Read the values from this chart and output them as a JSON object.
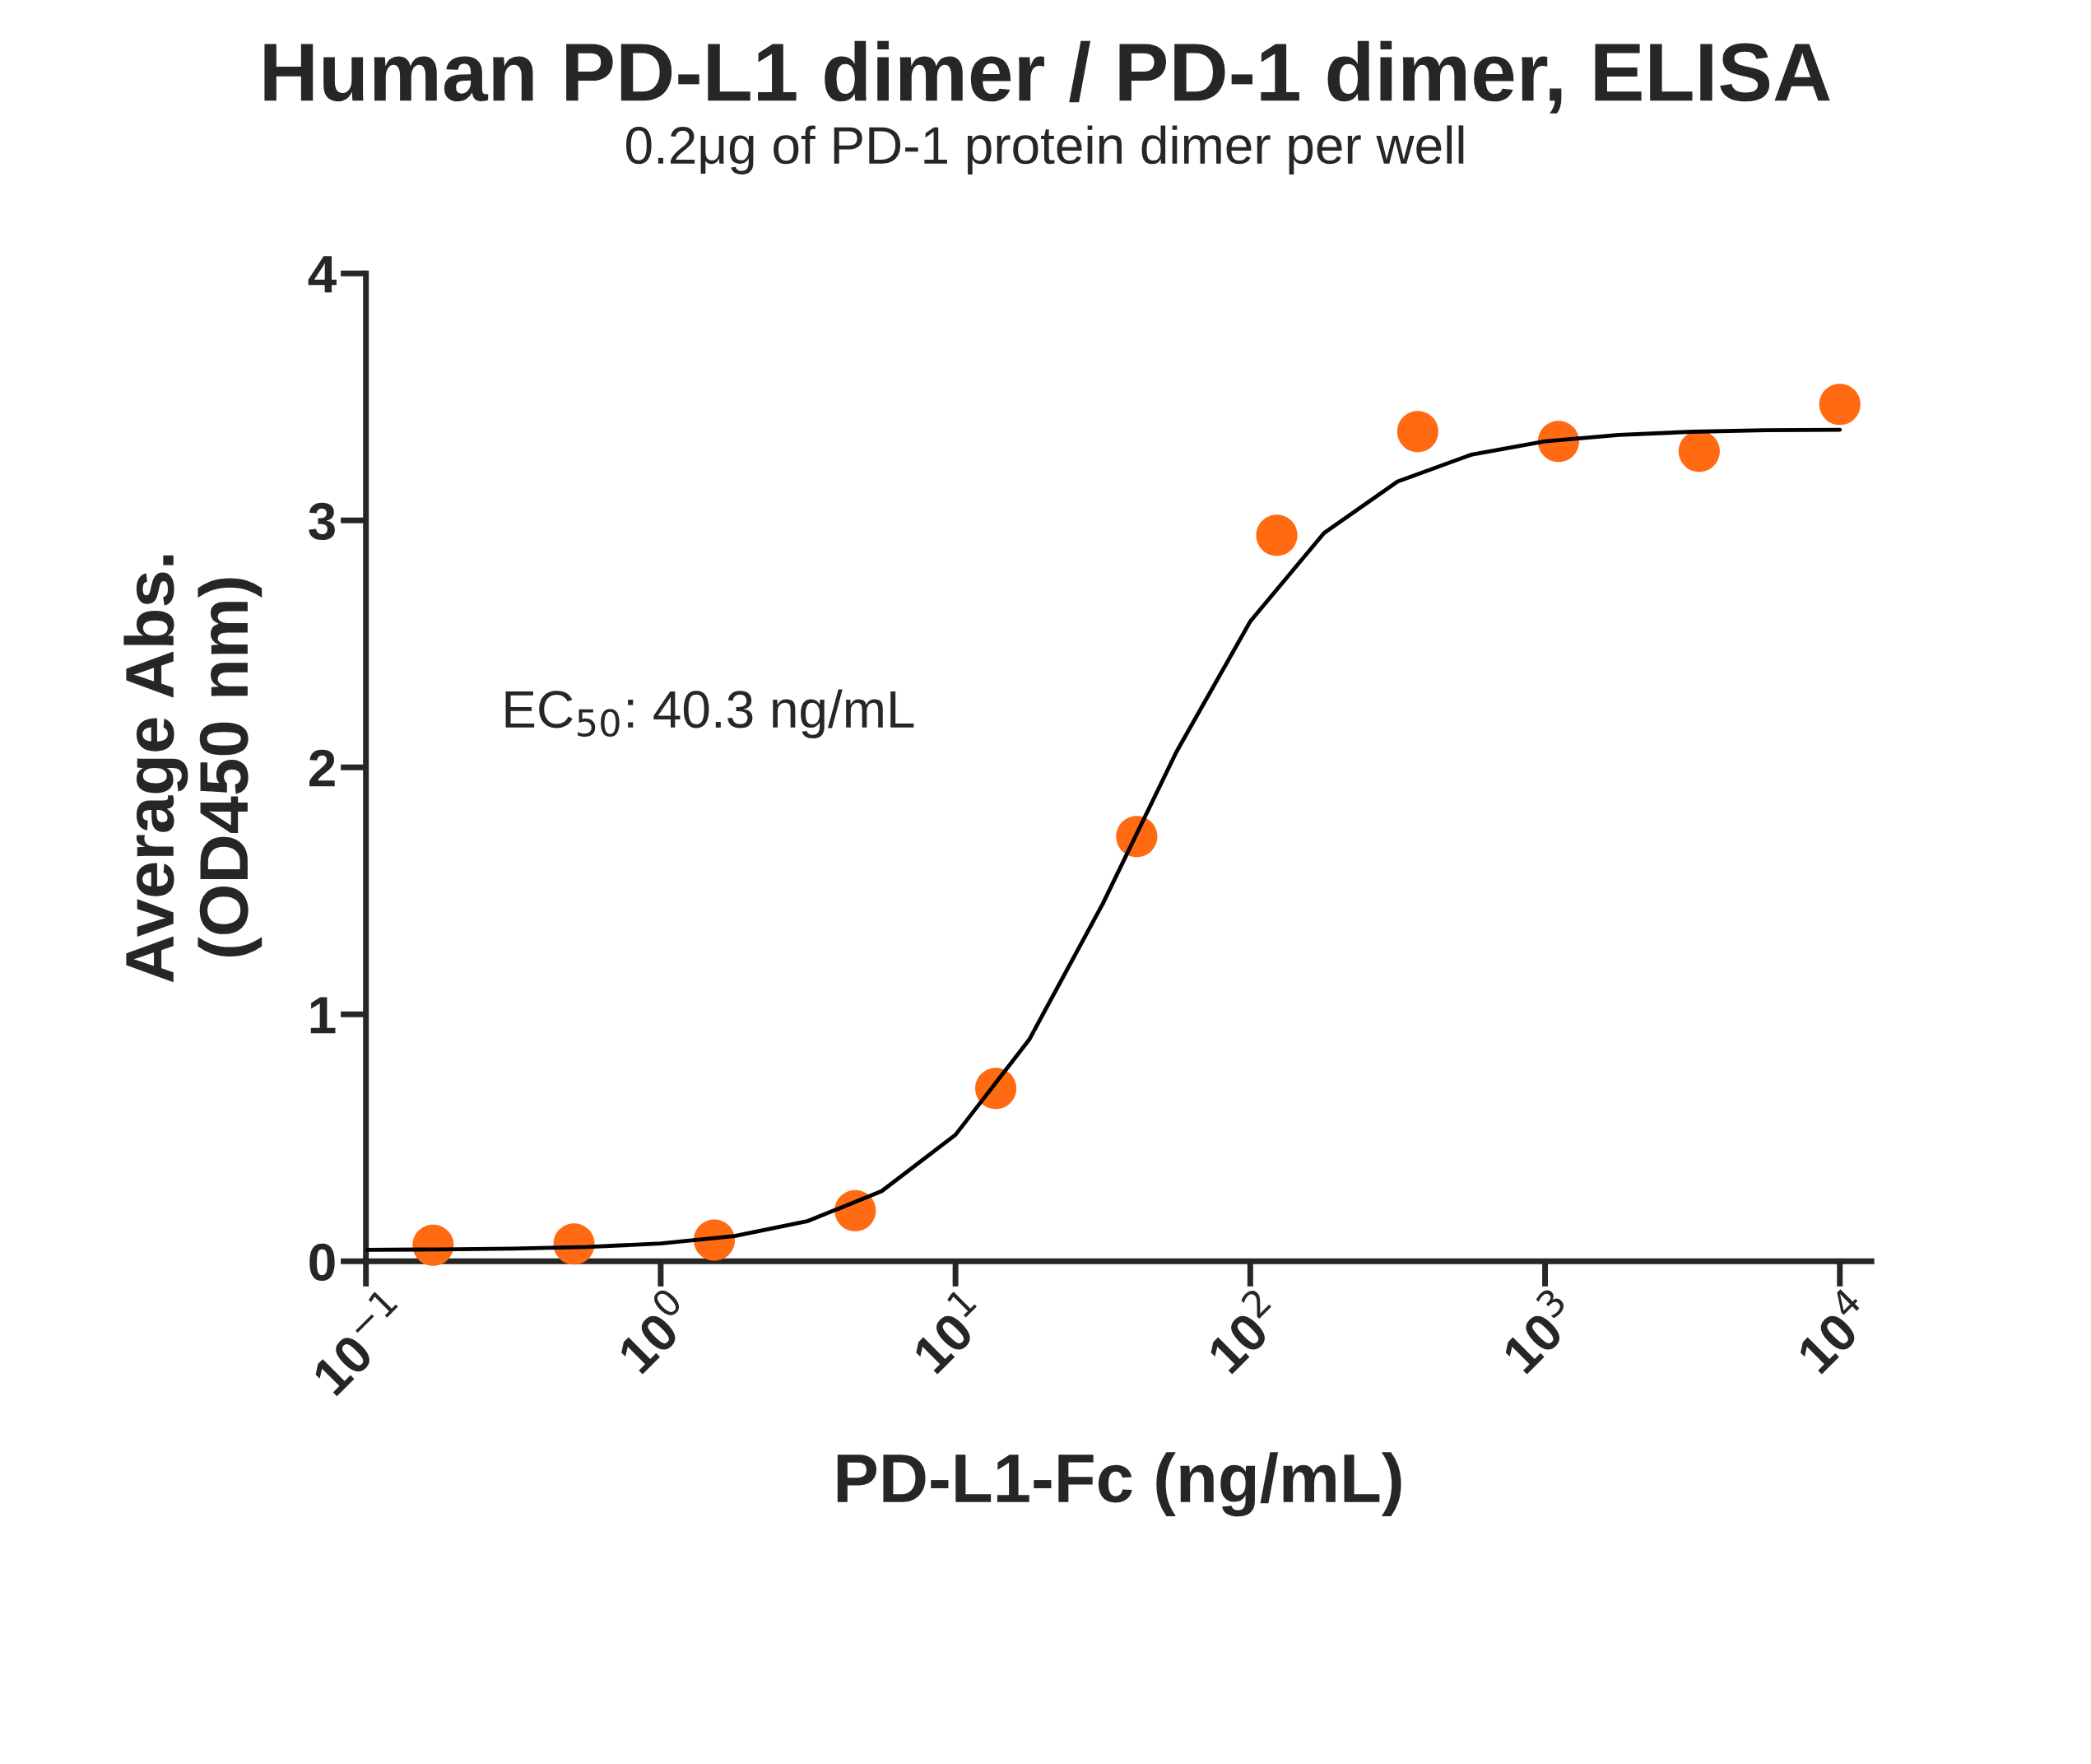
{
  "chart_data": {
    "type": "scatter",
    "title": "Human PD-L1 dimer / PD-1 dimer, ELISA",
    "subtitle": "0.2μg of PD-1 protein dimer per well",
    "xlabel": "PD-L1-Fc (ng/mL)",
    "ylabel": "Average Abs.\n(OD450 nm)",
    "annotations": [
      "EC$_{50}$: 40.3 ng/mL"
    ],
    "log": "x",
    "grid": false,
    "legend": false,
    "marker": "circle",
    "series": [
      {
        "color": "#ff6a13",
        "x": [
          0.169,
          0.508,
          1.52,
          4.57,
          13.7,
          41.2,
          123,
          370,
          1111,
          3333,
          10000
        ],
        "values": [
          0.065,
          0.07,
          0.086,
          0.205,
          0.7,
          1.72,
          2.94,
          3.36,
          3.32,
          3.28,
          3.47
        ]
      },
      {
        "type": "line",
        "color": "#000000",
        "line_style": "solid",
        "marker": "none",
        "x": [
          0.1,
          0.178,
          0.316,
          0.562,
          1,
          1.78,
          3.16,
          5.62,
          10,
          17.8,
          31.6,
          56.2,
          100,
          178,
          316,
          562,
          1000,
          1780,
          3160,
          5620,
          10000
        ],
        "values": [
          0.046,
          0.048,
          0.051,
          0.058,
          0.072,
          0.102,
          0.163,
          0.284,
          0.512,
          0.898,
          1.448,
          2.063,
          2.591,
          2.949,
          3.157,
          3.266,
          3.32,
          3.346,
          3.359,
          3.365,
          3.367
        ]
      }
    ],
    "xlim": [
      0.1,
      12800
    ],
    "xticks": [
      {
        "value": 0.1,
        "label": "10$^{−1}$"
      },
      {
        "value": 1,
        "label": "10$^{0}$"
      },
      {
        "value": 10,
        "label": "10$^{1}$"
      },
      {
        "value": 100,
        "label": "10$^{2}$"
      },
      {
        "value": 1000,
        "label": "10$^{3}$"
      },
      {
        "value": 10000,
        "label": "10$^{4}$"
      }
    ],
    "ylim": [
      0,
      4
    ],
    "yticks": [
      0,
      1,
      2,
      3,
      4
    ]
  }
}
